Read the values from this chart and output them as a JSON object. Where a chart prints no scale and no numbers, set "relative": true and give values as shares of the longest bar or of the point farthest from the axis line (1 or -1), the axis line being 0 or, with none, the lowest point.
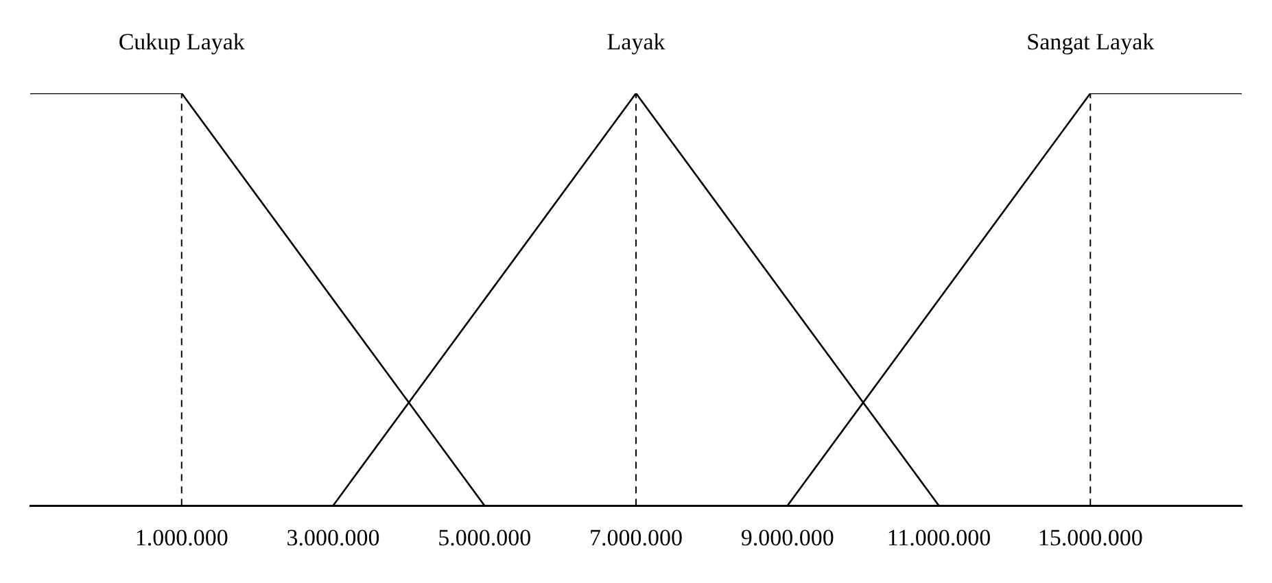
{
  "chart_data": {
    "type": "line",
    "categories": [
      null,
      "1.000.000",
      "3.000.000",
      "5.000.000",
      "7.000.000",
      "9.000.000",
      "11.000.000",
      "15.000.000",
      null
    ],
    "series": [
      {
        "name": "Cukup Layak",
        "color": "#000000",
        "values": [
          1,
          1,
          null,
          0,
          null,
          null,
          null,
          null,
          null
        ]
      },
      {
        "name": "Layak",
        "color": "#000000",
        "values": [
          null,
          null,
          0,
          null,
          1,
          null,
          0,
          null,
          null
        ]
      },
      {
        "name": "Sangat Layak",
        "color": "#000000",
        "values": [
          null,
          null,
          null,
          null,
          null,
          0,
          null,
          1,
          1
        ]
      }
    ],
    "relative": true,
    "grid": false,
    "legend": false,
    "marker": "none",
    "line_style": "solid",
    "tick_labels": "x",
    "ref_lines": [
      {
        "axis": "x",
        "value": "1.000.000",
        "color": "#000000",
        "line_style": "dashed"
      },
      {
        "axis": "x",
        "value": "7.000.000",
        "color": "#000000",
        "line_style": "dashed"
      },
      {
        "axis": "x",
        "value": "15.000.000",
        "color": "#000000",
        "line_style": "dashed"
      }
    ]
  }
}
